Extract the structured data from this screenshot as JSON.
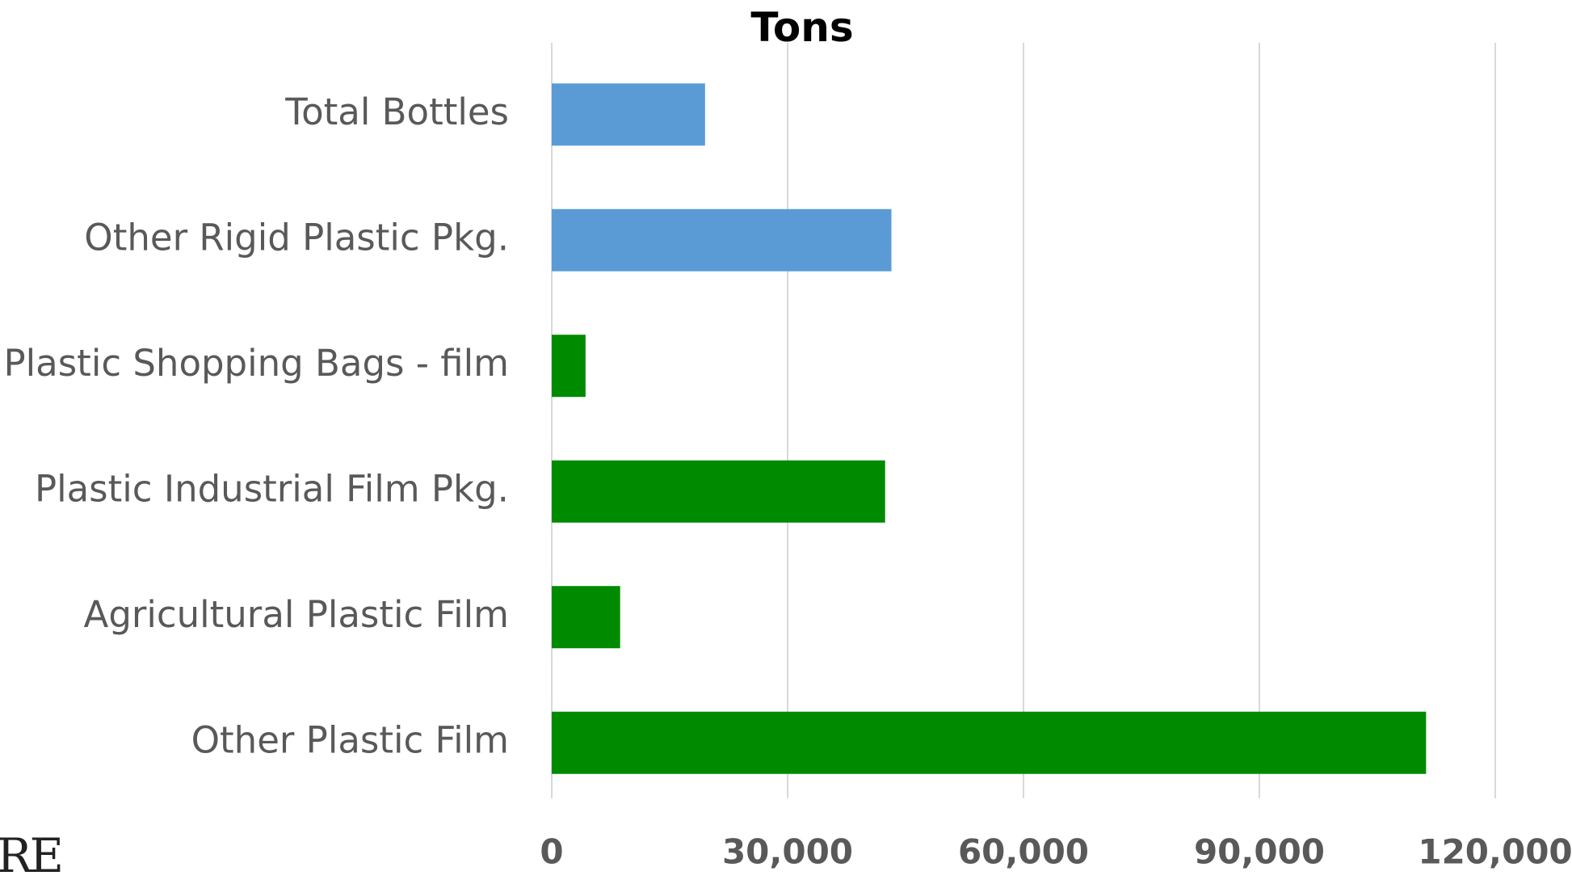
{
  "chart_data": {
    "type": "bar",
    "orientation": "horizontal",
    "title": "Tons",
    "xlabel": "",
    "ylabel": "",
    "categories": [
      "Total Bottles",
      "Other Rigid Plastic Pkg.",
      "Plastic Shopping Bags - film",
      "Plastic Industrial Film Pkg.",
      "Agricultural Plastic Film",
      "Other Plastic Film"
    ],
    "values": [
      19500,
      43200,
      4300,
      42400,
      8700,
      111200
    ],
    "bar_colors": [
      "#5b9bd5",
      "#5b9bd5",
      "#008a00",
      "#008a00",
      "#008a00",
      "#008a00"
    ],
    "xlim": [
      0,
      120000
    ],
    "x_ticks": [
      0,
      30000,
      60000,
      90000,
      120000
    ],
    "x_tick_labels": [
      "0",
      "30,000",
      "60,000",
      "90,000",
      "120,000"
    ],
    "grid": true,
    "legend": "none"
  },
  "corner_text": "RE"
}
